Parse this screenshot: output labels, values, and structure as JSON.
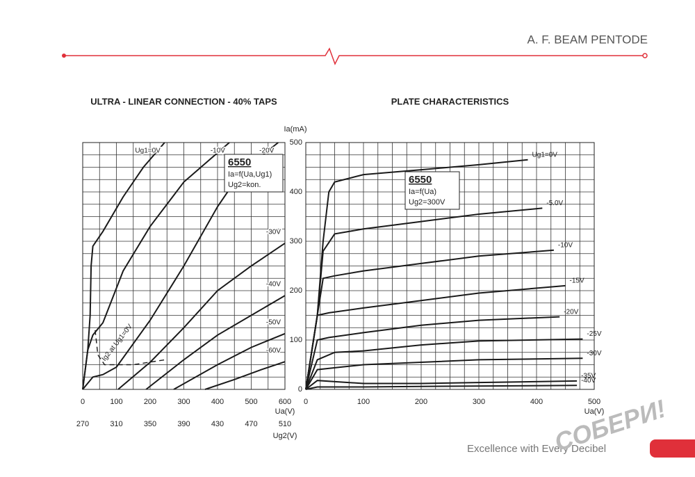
{
  "header": {
    "title": "A. F. BEAM PENTODE"
  },
  "footer": {
    "tagline": "Excellence with Every Decibel",
    "watermark": "СОБЕРИ!"
  },
  "chart_data": [
    {
      "type": "line",
      "title": "ULTRA - LINEAR CONNECTION - 40% TAPS",
      "xlabel": "Ua(V)",
      "x2label": "Ug2(V)",
      "xlim": [
        0,
        600
      ],
      "xticks": [
        0,
        100,
        200,
        300,
        400,
        500,
        600
      ],
      "x2lim": [
        270,
        510
      ],
      "x2ticks": [
        270,
        310,
        350,
        390,
        430,
        470,
        510
      ],
      "ylim": [
        0,
        500
      ],
      "grid": true,
      "grid_step_x": 50,
      "grid_step_y": 25,
      "color": "#1a1a1a",
      "annotation": {
        "tube": "6550",
        "formula": "Ia=f(Ua,Ug1)",
        "condition": "Ug2=kon."
      },
      "series": [
        {
          "name": "Ug1=0V",
          "x": [
            0,
            15,
            22,
            25,
            30,
            60,
            120,
            180,
            243
          ],
          "values": [
            0,
            80,
            150,
            250,
            290,
            320,
            390,
            450,
            500
          ]
        },
        {
          "name": "-10V",
          "x": [
            0,
            15,
            30,
            60,
            120,
            200,
            300,
            435
          ],
          "values": [
            0,
            80,
            110,
            135,
            240,
            330,
            420,
            500
          ]
        },
        {
          "name": "-20V",
          "x": [
            0,
            30,
            60,
            100,
            200,
            300,
            400,
            470,
            580
          ],
          "values": [
            0,
            25,
            30,
            45,
            140,
            250,
            370,
            440,
            500
          ]
        },
        {
          "name": "-30V",
          "x": [
            105,
            200,
            300,
            400,
            500,
            600
          ],
          "values": [
            0,
            55,
            125,
            200,
            250,
            296
          ]
        },
        {
          "name": "-40V",
          "x": [
            188,
            300,
            400,
            500,
            600
          ],
          "values": [
            0,
            60,
            110,
            150,
            190
          ]
        },
        {
          "name": "-50V",
          "x": [
            270,
            400,
            500,
            600
          ],
          "values": [
            0,
            50,
            85,
            113
          ]
        },
        {
          "name": "-60V",
          "x": [
            363,
            450,
            530,
            600
          ],
          "values": [
            0,
            20,
            40,
            56
          ]
        },
        {
          "name": "Ig2 at Ug1=0V",
          "style": "dashed",
          "x": [
            37,
            45,
            65,
            150,
            245
          ],
          "values": [
            120,
            70,
            50,
            50,
            60
          ]
        }
      ]
    },
    {
      "type": "line",
      "title": "PLATE CHARACTERISTICS",
      "xlabel": "Ua(V)",
      "ylabel": "Ia(mA)",
      "xlim": [
        0,
        500
      ],
      "xticks": [
        0,
        100,
        200,
        300,
        400,
        500
      ],
      "ylim": [
        0,
        500
      ],
      "yticks": [
        0,
        100,
        200,
        300,
        400,
        500
      ],
      "grid": true,
      "grid_step_x": 25,
      "grid_step_y": 25,
      "color": "#1a1a1a",
      "annotation": {
        "tube": "6550",
        "formula": "Ia=f(Ua)",
        "condition": "Ug2=300V"
      },
      "series": [
        {
          "name": "Ug1=0V",
          "x": [
            0,
            20,
            30,
            40,
            50,
            100,
            200,
            300,
            385
          ],
          "values": [
            0,
            150,
            300,
            400,
            420,
            435,
            445,
            455,
            465
          ]
        },
        {
          "name": "-5.0V",
          "x": [
            0,
            20,
            30,
            50,
            100,
            200,
            300,
            410
          ],
          "values": [
            0,
            150,
            280,
            315,
            325,
            340,
            355,
            367
          ]
        },
        {
          "name": "-10V",
          "x": [
            0,
            20,
            30,
            50,
            100,
            200,
            300,
            430
          ],
          "values": [
            0,
            150,
            225,
            230,
            240,
            255,
            270,
            282
          ]
        },
        {
          "name": "-15V",
          "x": [
            0,
            20,
            40,
            100,
            200,
            300,
            450
          ],
          "values": [
            0,
            150,
            155,
            165,
            180,
            195,
            210
          ]
        },
        {
          "name": "-20V",
          "x": [
            0,
            20,
            40,
            100,
            200,
            300,
            440
          ],
          "values": [
            0,
            100,
            105,
            115,
            130,
            140,
            147
          ]
        },
        {
          "name": "-25V",
          "x": [
            0,
            20,
            50,
            100,
            200,
            300,
            480
          ],
          "values": [
            0,
            60,
            75,
            78,
            90,
            98,
            102
          ]
        },
        {
          "name": "-30V",
          "x": [
            0,
            20,
            60,
            100,
            200,
            300,
            480
          ],
          "values": [
            0,
            40,
            45,
            50,
            55,
            60,
            63
          ]
        },
        {
          "name": "-35V",
          "x": [
            0,
            20,
            60,
            100,
            200,
            300,
            470
          ],
          "values": [
            0,
            18,
            15,
            12,
            12,
            14,
            17
          ]
        },
        {
          "name": "-40V",
          "x": [
            0,
            20,
            100,
            200,
            470
          ],
          "values": [
            0,
            5,
            5,
            6,
            8
          ]
        }
      ]
    }
  ]
}
